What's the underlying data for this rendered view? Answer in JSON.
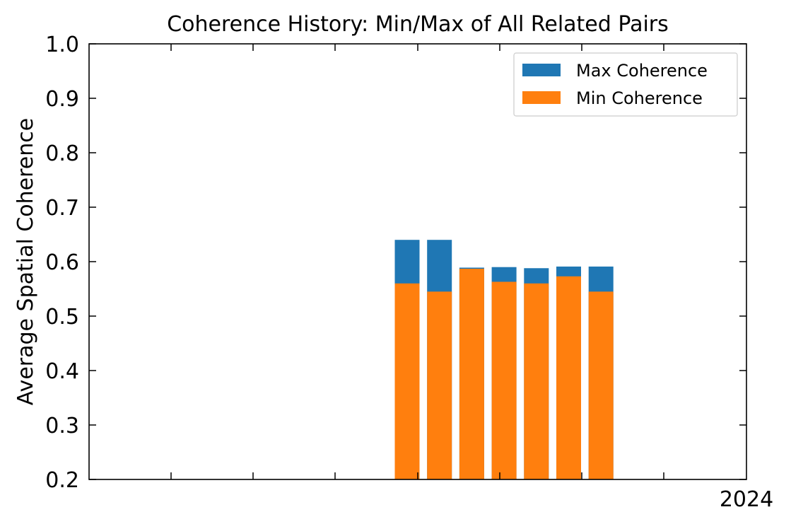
{
  "chart_data": {
    "type": "bar",
    "title": "Coherence History: Min/Max of All Related Pairs",
    "xlabel": "",
    "ylabel": "Average Spatial Coherence",
    "ylim": [
      0.2,
      1.0
    ],
    "yticks": [
      "0.2",
      "0.3",
      "0.4",
      "0.5",
      "0.6",
      "0.7",
      "0.8",
      "0.9",
      "1.0"
    ],
    "xtick_labels": [
      "2024"
    ],
    "grid": false,
    "legend_position": "top-right",
    "categories": [
      "",
      "",
      "",
      "",
      "",
      "",
      ""
    ],
    "series": [
      {
        "name": "Max Coherence",
        "color": "#1f77b4",
        "values": [
          0.64,
          0.64,
          0.589,
          0.59,
          0.588,
          0.591,
          0.591
        ]
      },
      {
        "name": "Min Coherence",
        "color": "#ff7f0e",
        "values": [
          0.56,
          0.545,
          0.587,
          0.563,
          0.56,
          0.573,
          0.545
        ]
      }
    ]
  }
}
